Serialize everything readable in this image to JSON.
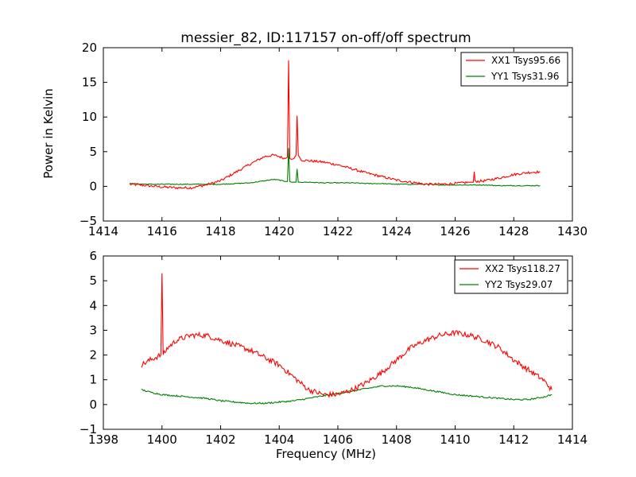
{
  "chart_data": [
    {
      "type": "line",
      "title": "messier_82, ID:117157 on-off/off spectrum",
      "xlabel": "",
      "ylabel": "Power in Kelvin",
      "xlim": [
        1414,
        1430
      ],
      "ylim": [
        -5,
        20
      ],
      "xticks": [
        1414,
        1416,
        1418,
        1420,
        1422,
        1424,
        1426,
        1428,
        1430
      ],
      "yticks": [
        -5,
        0,
        5,
        10,
        15,
        20
      ],
      "grid": false,
      "legend_position": "top-right",
      "series": [
        {
          "name": "XX1 Tsys95.66",
          "color": "#ff0000",
          "x": [
            1414.9,
            1415.5,
            1416.0,
            1416.5,
            1417.0,
            1417.5,
            1418.0,
            1418.5,
            1419.0,
            1419.5,
            1419.8,
            1420.0,
            1420.2,
            1420.28,
            1420.32,
            1420.36,
            1420.42,
            1420.5,
            1420.57,
            1420.61,
            1420.65,
            1420.75,
            1421.0,
            1421.5,
            1422.0,
            1422.5,
            1423.0,
            1423.5,
            1424.0,
            1424.5,
            1425.0,
            1425.5,
            1426.0,
            1426.5,
            1426.62,
            1426.65,
            1426.68,
            1427.0,
            1427.5,
            1428.0,
            1428.5,
            1428.9
          ],
          "y": [
            0.3,
            0.1,
            -0.1,
            -0.2,
            -0.2,
            0.2,
            0.8,
            2.0,
            3.2,
            4.3,
            4.5,
            4.3,
            4.0,
            4.2,
            18.2,
            4.0,
            3.9,
            4.0,
            4.5,
            10.2,
            4.5,
            3.8,
            3.7,
            3.5,
            3.1,
            2.5,
            1.9,
            1.4,
            0.9,
            0.6,
            0.3,
            0.3,
            0.4,
            0.6,
            0.6,
            2.1,
            0.7,
            0.8,
            1.2,
            1.7,
            2.0,
            2.1
          ]
        },
        {
          "name": "YY1 Tsys31.96",
          "color": "#008000",
          "x": [
            1414.9,
            1415.5,
            1416.0,
            1416.5,
            1417.0,
            1417.5,
            1418.0,
            1418.5,
            1419.0,
            1419.5,
            1419.8,
            1420.0,
            1420.2,
            1420.28,
            1420.32,
            1420.36,
            1420.42,
            1420.5,
            1420.57,
            1420.61,
            1420.65,
            1420.75,
            1421.0,
            1421.5,
            1422.0,
            1422.5,
            1423.0,
            1423.5,
            1424.0,
            1424.5,
            1425.0,
            1425.5,
            1426.0,
            1426.5,
            1427.0,
            1427.5,
            1428.0,
            1428.5,
            1428.9
          ],
          "y": [
            0.4,
            0.3,
            0.3,
            0.3,
            0.3,
            0.3,
            0.3,
            0.4,
            0.5,
            0.8,
            1.0,
            0.9,
            0.7,
            0.7,
            5.5,
            0.7,
            0.6,
            0.6,
            0.6,
            2.5,
            0.6,
            0.6,
            0.6,
            0.5,
            0.5,
            0.5,
            0.4,
            0.4,
            0.3,
            0.3,
            0.3,
            0.2,
            0.2,
            0.2,
            0.2,
            0.1,
            0.1,
            0.1,
            0.1
          ]
        }
      ]
    },
    {
      "type": "line",
      "title": "",
      "xlabel": "Frequency (MHz)",
      "ylabel": "",
      "xlim": [
        1398,
        1414
      ],
      "ylim": [
        -1,
        6
      ],
      "xticks": [
        1398,
        1400,
        1402,
        1404,
        1406,
        1408,
        1410,
        1412,
        1414
      ],
      "yticks": [
        -1,
        0,
        1,
        2,
        3,
        4,
        5,
        6
      ],
      "grid": false,
      "legend_position": "top-right",
      "series": [
        {
          "name": "XX2 Tsys118.27",
          "color": "#ff0000",
          "x": [
            1399.3,
            1399.6,
            1399.96,
            1400.0,
            1400.04,
            1400.2,
            1400.5,
            1401.0,
            1401.5,
            1402.0,
            1402.5,
            1403.0,
            1403.5,
            1404.0,
            1404.3,
            1404.6,
            1405.0,
            1405.5,
            1406.0,
            1406.5,
            1407.0,
            1407.5,
            1408.0,
            1408.5,
            1409.0,
            1409.5,
            1410.0,
            1410.5,
            1411.0,
            1411.5,
            1412.0,
            1412.5,
            1413.0,
            1413.3
          ],
          "y": [
            1.6,
            1.8,
            2.0,
            5.3,
            2.0,
            2.3,
            2.6,
            2.8,
            2.8,
            2.6,
            2.4,
            2.2,
            1.9,
            1.6,
            1.3,
            1.0,
            0.6,
            0.4,
            0.4,
            0.6,
            0.9,
            1.3,
            1.8,
            2.3,
            2.6,
            2.8,
            2.9,
            2.8,
            2.6,
            2.3,
            1.8,
            1.4,
            1.0,
            0.6
          ]
        },
        {
          "name": "YY2 Tsys29.07",
          "color": "#008000",
          "x": [
            1399.3,
            1399.6,
            1400.0,
            1400.5,
            1401.0,
            1401.5,
            1402.0,
            1402.5,
            1403.0,
            1403.5,
            1404.0,
            1404.5,
            1405.0,
            1405.5,
            1406.0,
            1406.5,
            1407.0,
            1407.5,
            1408.0,
            1408.5,
            1409.0,
            1409.5,
            1410.0,
            1410.5,
            1411.0,
            1411.5,
            1412.0,
            1412.5,
            1413.0,
            1413.3
          ],
          "y": [
            0.6,
            0.5,
            0.4,
            0.35,
            0.3,
            0.25,
            0.15,
            0.1,
            0.05,
            0.05,
            0.1,
            0.15,
            0.25,
            0.35,
            0.45,
            0.55,
            0.65,
            0.75,
            0.75,
            0.7,
            0.6,
            0.5,
            0.4,
            0.35,
            0.3,
            0.25,
            0.2,
            0.2,
            0.3,
            0.4
          ]
        }
      ]
    }
  ]
}
